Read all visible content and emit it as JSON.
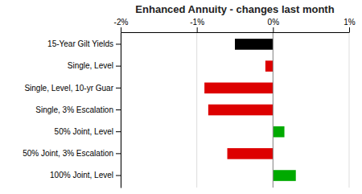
{
  "chart_data": {
    "type": "bar",
    "orientation": "horizontal",
    "title": "Enhanced Annuity - changes last month",
    "categories": [
      "15-Year Gilt Yields",
      "Single, Level",
      "Single, Level, 10-yr Guar",
      "Single, 3% Escalation",
      "50% Joint, Level",
      "50% Joint, 3% Escalation",
      "100% Joint, Level"
    ],
    "values": [
      -0.5,
      -0.1,
      -0.9,
      -0.85,
      0.15,
      -0.6,
      0.3
    ],
    "colors": [
      "#000000",
      "#dd0000",
      "#dd0000",
      "#dd0000",
      "#00aa00",
      "#dd0000",
      "#00aa00"
    ],
    "xlim": [
      -2.0,
      1.0
    ],
    "xticks": [
      {
        "value": -2.0,
        "label": "-2%"
      },
      {
        "value": -1.0,
        "label": "-1%"
      },
      {
        "value": 0.0,
        "label": "0%"
      },
      {
        "value": 1.0,
        "label": "1%"
      }
    ],
    "grid": true
  }
}
